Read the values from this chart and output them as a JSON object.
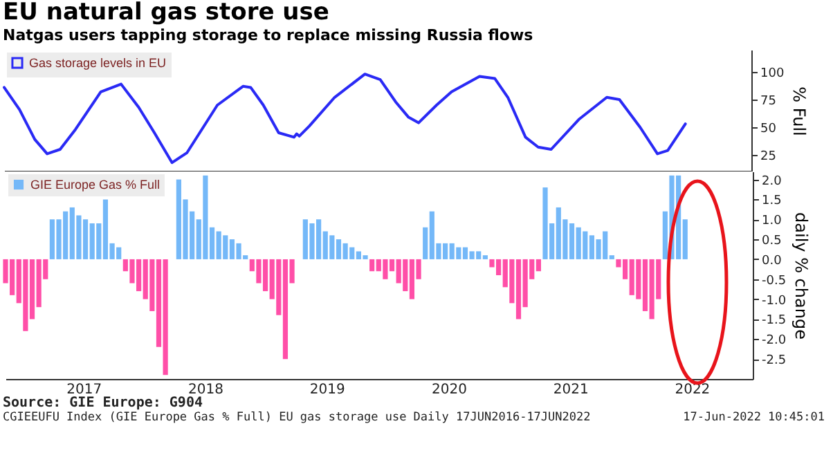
{
  "chart_data": [
    {
      "type": "line",
      "title": "EU natural gas store use",
      "subtitle": "Natgas users tapping storage to replace missing Russia flows",
      "ylabel": "% Full",
      "legend": "top left",
      "tick_labels": "y",
      "xlim": [
        "2016-11-10",
        "2023-01-01"
      ],
      "ylim": [
        10,
        120
      ],
      "yticks": [
        25,
        50,
        75,
        100
      ],
      "x": [
        "2016-11-10",
        "2016-12-26",
        "2017-02-10",
        "2017-03-19",
        "2017-04-27",
        "2017-06-12",
        "2017-08-27",
        "2017-10-27",
        "2017-12-19",
        "2018-02-04",
        "2018-03-29",
        "2018-05-13",
        "2018-08-12",
        "2018-10-28",
        "2018-11-20",
        "2018-12-28",
        "2019-02-12",
        "2019-03-30",
        "2019-04-07",
        "2019-04-15",
        "2019-05-15",
        "2019-07-30",
        "2019-10-29",
        "2019-12-14",
        "2020-01-29",
        "2020-03-08",
        "2020-04-07",
        "2020-05-31",
        "2020-07-15",
        "2020-10-07",
        "2020-11-22",
        "2020-12-31",
        "2021-02-22",
        "2021-04-01",
        "2021-05-10",
        "2021-08-01",
        "2021-10-24",
        "2021-12-01",
        "2022-02-01",
        "2022-03-25",
        "2022-04-25",
        "2022-06-17"
      ],
      "series": [
        {
          "name": "Gas storage levels in EU",
          "color": "#2a2af5",
          "values": [
            86,
            66,
            39,
            26,
            30,
            48,
            82,
            89,
            68,
            45,
            18,
            27,
            70,
            87,
            86,
            70,
            45,
            41,
            44,
            42,
            51,
            77,
            98,
            93,
            73,
            59,
            54,
            70,
            82,
            96,
            94,
            77,
            41,
            32,
            30,
            57,
            77,
            75,
            50,
            26,
            29,
            53
          ]
        }
      ]
    },
    {
      "type": "bar",
      "ylabel": "daily % change",
      "legend": "top left",
      "xlim": [
        "2016-11-10",
        "2023-01-01"
      ],
      "xticks": [
        {
          "value": "2017-07-02",
          "label": "2017"
        },
        {
          "value": "2018-07-02",
          "label": "2018"
        },
        {
          "value": "2019-07-02",
          "label": "2019"
        },
        {
          "value": "2020-07-02",
          "label": "2020"
        },
        {
          "value": "2021-07-02",
          "label": "2021"
        },
        {
          "value": "2022-07-02",
          "label": "2022"
        }
      ],
      "ylim": [
        -3.0,
        2.2
      ],
      "yticks": [
        {
          "value": -2.5,
          "label": "-2.5"
        },
        {
          "value": -2,
          "label": "-2.0"
        },
        {
          "value": -1.5,
          "label": "-1.5"
        },
        {
          "value": -1,
          "label": "-1.0"
        },
        {
          "value": -0.5,
          "label": "-0.5"
        },
        {
          "value": 0,
          "label": "0.0"
        },
        {
          "value": 0.5,
          "label": "0.5"
        },
        {
          "value": 1,
          "label": "1.0"
        },
        {
          "value": 1.5,
          "label": "1.5"
        },
        {
          "value": 2,
          "label": "2.0"
        }
      ],
      "x": [
        "2016-11-10",
        "2016-11-30",
        "2016-12-20",
        "2017-01-09",
        "2017-01-29",
        "2017-02-18",
        "2017-03-10",
        "2017-03-30",
        "2017-04-19",
        "2017-05-09",
        "2017-05-29",
        "2017-06-18",
        "2017-07-08",
        "2017-07-28",
        "2017-08-17",
        "2017-09-06",
        "2017-09-26",
        "2017-10-16",
        "2017-11-05",
        "2017-11-25",
        "2017-12-15",
        "2018-01-04",
        "2018-01-24",
        "2018-02-13",
        "2018-03-05",
        "2018-03-25",
        "2018-04-14",
        "2018-05-04",
        "2018-05-24",
        "2018-06-13",
        "2018-07-03",
        "2018-07-23",
        "2018-08-12",
        "2018-09-01",
        "2018-09-21",
        "2018-10-11",
        "2018-10-31",
        "2018-11-20",
        "2018-12-10",
        "2018-12-30",
        "2019-01-19",
        "2019-02-08",
        "2019-02-28",
        "2019-03-20",
        "2019-04-09",
        "2019-04-29",
        "2019-05-19",
        "2019-06-08",
        "2019-06-28",
        "2019-07-18",
        "2019-08-07",
        "2019-08-27",
        "2019-09-16",
        "2019-10-06",
        "2019-10-26",
        "2019-11-15",
        "2019-12-05",
        "2019-12-25",
        "2020-01-14",
        "2020-02-03",
        "2020-02-23",
        "2020-03-14",
        "2020-04-03",
        "2020-04-23",
        "2020-05-13",
        "2020-06-02",
        "2020-06-22",
        "2020-07-12",
        "2020-08-01",
        "2020-08-21",
        "2020-09-10",
        "2020-09-30",
        "2020-10-20",
        "2020-11-09",
        "2020-11-29",
        "2020-12-19",
        "2021-01-08",
        "2021-01-28",
        "2021-02-17",
        "2021-03-09",
        "2021-03-29",
        "2021-04-18",
        "2021-05-08",
        "2021-05-28",
        "2021-06-17",
        "2021-07-07",
        "2021-07-27",
        "2021-08-16",
        "2021-09-05",
        "2021-09-25",
        "2021-10-15",
        "2021-11-04",
        "2021-11-24",
        "2021-12-14",
        "2022-01-03",
        "2022-01-23",
        "2022-02-12",
        "2022-03-04",
        "2022-03-24",
        "2022-04-13",
        "2022-05-03",
        "2022-05-23",
        "2022-06-12"
      ],
      "series": [
        {
          "name": "GIE Europe Gas % Full",
          "color": "#74b8f8",
          "values": [
            null,
            null,
            null,
            null,
            null,
            null,
            null,
            1.0,
            1.0,
            1.2,
            1.3,
            1.1,
            1.0,
            0.9,
            0.9,
            1.5,
            0.4,
            0.3,
            null,
            null,
            null,
            null,
            null,
            null,
            null,
            null,
            2.0,
            1.5,
            1.2,
            1.0,
            2.1,
            0.8,
            0.7,
            0.6,
            0.5,
            0.4,
            0.1,
            null,
            null,
            null,
            null,
            null,
            null,
            null,
            null,
            1.0,
            0.9,
            1.0,
            0.7,
            0.6,
            0.5,
            0.4,
            0.3,
            0.2,
            0.1,
            null,
            null,
            null,
            null,
            null,
            null,
            null,
            null,
            0.8,
            1.2,
            0.4,
            0.4,
            0.4,
            0.3,
            0.3,
            0.2,
            0.2,
            0.1,
            null,
            null,
            null,
            null,
            null,
            null,
            null,
            null,
            1.8,
            0.9,
            1.3,
            1.0,
            0.9,
            0.8,
            0.7,
            0.6,
            0.5,
            0.7,
            0.1,
            null,
            null,
            null,
            null,
            null,
            null,
            null,
            1.2,
            2.1,
            2.1,
            1.0
          ]
        },
        {
          "color": "#ff4fa8",
          "values": [
            -0.6,
            -0.9,
            -1.1,
            -1.8,
            -1.5,
            -1.2,
            -0.5,
            null,
            null,
            null,
            null,
            null,
            null,
            null,
            null,
            null,
            null,
            null,
            -0.3,
            -0.6,
            -0.8,
            -1.0,
            -1.3,
            -2.2,
            -2.9,
            null,
            null,
            null,
            null,
            null,
            null,
            null,
            null,
            null,
            null,
            null,
            null,
            -0.3,
            -0.6,
            -0.8,
            -1.0,
            -1.4,
            -2.5,
            -0.6,
            null,
            null,
            null,
            null,
            null,
            null,
            null,
            null,
            null,
            null,
            null,
            -0.3,
            -0.3,
            -0.5,
            -0.3,
            -0.6,
            -0.8,
            -1.0,
            -0.5,
            null,
            null,
            null,
            null,
            null,
            null,
            null,
            null,
            null,
            null,
            -0.2,
            -0.4,
            -0.7,
            -1.1,
            -1.5,
            -1.2,
            -0.5,
            -0.3,
            null,
            null,
            null,
            null,
            null,
            null,
            null,
            null,
            null,
            null,
            null,
            -0.2,
            -0.5,
            -0.9,
            -1.0,
            -1.3,
            -1.5,
            -1.0,
            null,
            null,
            null,
            null
          ]
        }
      ],
      "annotations": [
        "Source: GIE Europe: G904",
        "CGIEEUFU Index (GIE Europe Gas % Full) EU gas storage use  Daily 17JUN2016-17JUN2022",
        "17-Jun-2022 10:45:01"
      ]
    }
  ]
}
